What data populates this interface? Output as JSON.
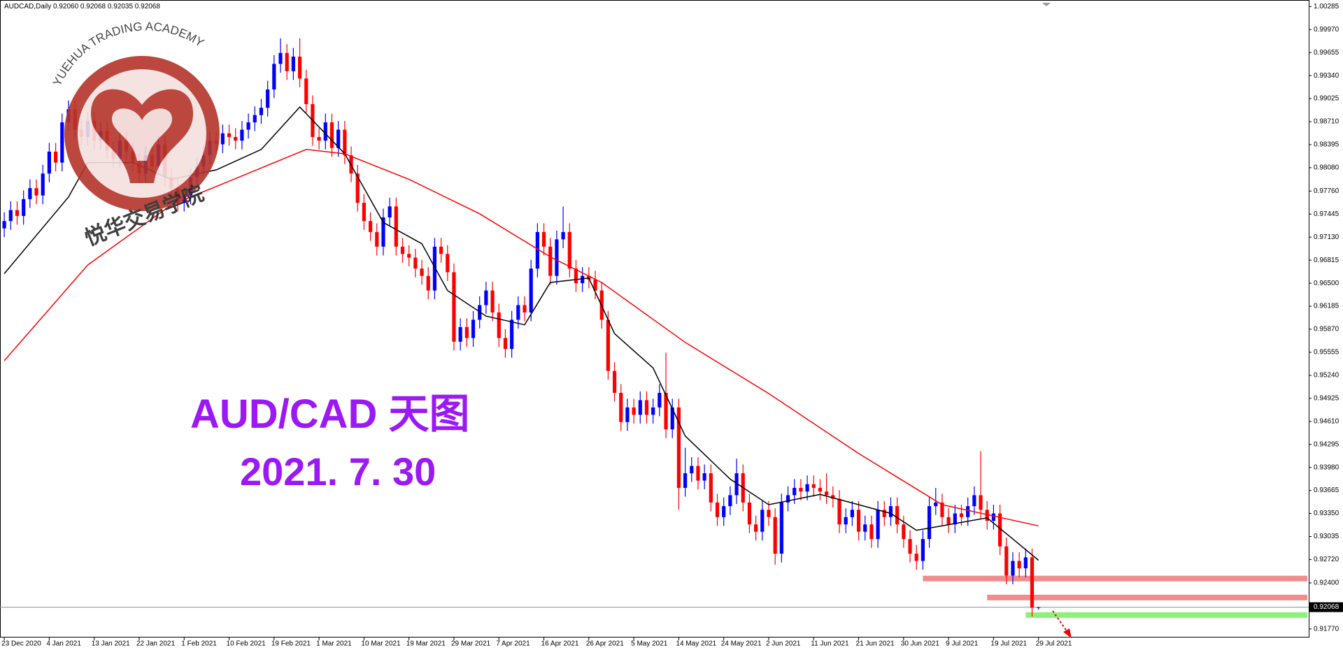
{
  "chart_data": {
    "type": "candlestick",
    "title": "AUDCAD,Daily 0.92060 0.92068 0.92035 0.92068",
    "annotations": [
      "AUD/CAD 天图",
      "2021. 7. 30"
    ],
    "logo": {
      "text_en": "YUEHUA TRADING ACADEMY",
      "text_cn": "悦华交易学院"
    },
    "up_color": "#0000ff",
    "down_color": "#ff0000",
    "ylim": [
      0.91653,
      1.00355
    ],
    "yticks": [
      1.00285,
      {
        "value": 0.9997,
        "label": "0.99970"
      },
      0.99655,
      {
        "value": 0.9934,
        "label": "0.99340"
      },
      0.99025,
      {
        "value": 0.9871,
        "label": "0.98710"
      },
      0.98395,
      {
        "value": 0.9808,
        "label": "0.98080"
      },
      {
        "value": 0.9776,
        "label": "0.97760"
      },
      0.97445,
      {
        "value": 0.9713,
        "label": "0.97130"
      },
      0.96815,
      {
        "value": 0.965,
        "label": "0.96500"
      },
      0.96185,
      {
        "value": 0.9587,
        "label": "0.95870"
      },
      0.95555,
      {
        "value": 0.9524,
        "label": "0.95240"
      },
      0.94925,
      {
        "value": 0.9461,
        "label": "0.94610"
      },
      0.94295,
      {
        "value": 0.9398,
        "label": "0.93980"
      },
      0.93665,
      {
        "value": 0.9335,
        "label": "0.93350"
      },
      0.93035,
      {
        "value": 0.9272,
        "label": "0.92720"
      },
      {
        "value": 0.924,
        "label": "0.92400"
      },
      {
        "value": 0.9177,
        "label": "0.91770"
      }
    ],
    "current_price": 0.92068,
    "categories": [
      "23 Dec 2020",
      null,
      null,
      null,
      null,
      null,
      null,
      "4 Jan 2021",
      null,
      null,
      null,
      null,
      null,
      null,
      "13 Jan 2021",
      null,
      null,
      null,
      null,
      null,
      null,
      "22 Jan 2021",
      null,
      null,
      null,
      null,
      null,
      null,
      "1 Feb 2021",
      null,
      null,
      null,
      null,
      null,
      null,
      "10 Feb 2021",
      null,
      null,
      null,
      null,
      null,
      null,
      "19 Feb 2021",
      null,
      null,
      null,
      null,
      null,
      null,
      "1 Mar 2021",
      null,
      null,
      null,
      null,
      null,
      null,
      "10 Mar 2021",
      null,
      null,
      null,
      null,
      null,
      null,
      "19 Mar 2021",
      null,
      null,
      null,
      null,
      null,
      null,
      "29 Mar 2021",
      null,
      null,
      null,
      null,
      null,
      null,
      "7 Apr 2021",
      null,
      null,
      null,
      null,
      null,
      null,
      "16 Apr 2021",
      null,
      null,
      null,
      null,
      null,
      null,
      "26 Apr 2021",
      null,
      null,
      null,
      null,
      null,
      null,
      "5 May 2021",
      null,
      null,
      null,
      null,
      null,
      null,
      "14 May 2021",
      null,
      null,
      null,
      null,
      null,
      null,
      "24 May 2021",
      null,
      null,
      null,
      null,
      null,
      null,
      "2 Jun 2021",
      null,
      null,
      null,
      null,
      null,
      null,
      "11 Jun 2021",
      null,
      null,
      null,
      null,
      null,
      null,
      "21 Jun 2021",
      null,
      null,
      null,
      null,
      null,
      null,
      "30 Jun 2021",
      null,
      null,
      null,
      null,
      null,
      null,
      "9 Jul 2021",
      null,
      null,
      null,
      null,
      null,
      null,
      "19 Jul 2021",
      null,
      null,
      null,
      null,
      null,
      null,
      "29 Jul 2021"
    ],
    "open": [
      0.9725,
      0.9735,
      0.975,
      0.9742,
      0.9765,
      0.978,
      0.977,
      0.98,
      0.983,
      0.9815,
      0.987,
      0.9888,
      0.986,
      0.985,
      0.9872,
      0.9845,
      0.9858,
      0.9832,
      0.982,
      0.9845,
      0.983,
      0.9815,
      0.98,
      0.9825,
      0.981,
      0.984,
      0.9795,
      0.978,
      0.976,
      0.977,
      0.9795,
      0.981,
      0.9825,
      0.9845,
      0.984,
      0.9855,
      0.985,
      0.9845,
      0.986,
      0.987,
      0.988,
      0.989,
      0.9915,
      0.995,
      0.9965,
      0.994,
      0.996,
      0.993,
      0.9895,
      0.985,
      0.9845,
      0.987,
      0.9835,
      0.986,
      0.9825,
      0.98,
      0.976,
      0.9735,
      0.972,
      0.97,
      0.974,
      0.9755,
      0.97,
      0.969,
      0.9685,
      0.967,
      0.966,
      0.964,
      0.97,
      0.969,
      0.9665,
      0.957,
      0.959,
      0.9575,
      0.96,
      0.962,
      0.964,
      0.961,
      0.9575,
      0.956,
      0.96,
      0.962,
      0.961,
      0.967,
      0.972,
      0.97,
      0.966,
      0.971,
      0.972,
      0.967,
      0.965,
      0.966,
      0.9655,
      0.964,
      0.96,
      0.953,
      0.95,
      0.946,
      0.948,
      0.947,
      0.949,
      0.947,
      0.948,
      0.95,
      0.945,
      0.948,
      0.937,
      0.939,
      0.94,
      0.938,
      0.939,
      0.935,
      0.933,
      0.9345,
      0.936,
      0.939,
      0.935,
      0.932,
      0.931,
      0.934,
      0.933,
      0.928,
      0.935,
      0.936,
      0.937,
      0.9365,
      0.9375,
      0.937,
      0.9365,
      0.936,
      0.9355,
      0.932,
      0.933,
      0.934,
      0.931,
      0.932,
      0.93,
      0.934,
      0.933,
      0.9345,
      0.932,
      0.93,
      0.928,
      0.927,
      0.93,
      0.9345,
      0.935,
      0.933,
      0.932,
      0.9335,
      0.933,
      0.9345,
      0.936,
      0.934,
      0.9325,
      0.9335,
      0.929,
      0.925,
      0.927,
      0.926,
      0.9275,
      0.9206
    ],
    "high": [
      0.9747,
      0.9762,
      0.9762,
      0.9777,
      0.9792,
      0.9792,
      0.9812,
      0.9842,
      0.9842,
      0.9882,
      0.99,
      0.99,
      0.9872,
      0.9884,
      0.9884,
      0.987,
      0.987,
      0.9844,
      0.9857,
      0.9857,
      0.9842,
      0.9827,
      0.9837,
      0.9837,
      0.9852,
      0.9852,
      0.9807,
      0.9792,
      0.9782,
      0.9807,
      0.9822,
      0.9837,
      0.9857,
      0.9857,
      0.9867,
      0.9867,
      0.9862,
      0.9872,
      0.9882,
      0.9892,
      0.9902,
      0.9927,
      0.9962,
      0.9985,
      0.9977,
      0.9972,
      0.9985,
      0.9942,
      0.9907,
      0.9862,
      0.9882,
      0.9882,
      0.9872,
      0.9872,
      0.9837,
      0.9812,
      0.9772,
      0.9747,
      0.9732,
      0.9752,
      0.9767,
      0.9767,
      0.9712,
      0.9702,
      0.9697,
      0.9682,
      0.9672,
      0.9712,
      0.9712,
      0.9702,
      0.9677,
      0.9602,
      0.9602,
      0.9612,
      0.9632,
      0.9652,
      0.9652,
      0.9622,
      0.9587,
      0.9612,
      0.9632,
      0.9632,
      0.9682,
      0.9732,
      0.9732,
      0.9712,
      0.9722,
      0.9755,
      0.9732,
      0.9682,
      0.9672,
      0.9672,
      0.9667,
      0.9652,
      0.9612,
      0.9542,
      0.9512,
      0.9492,
      0.9492,
      0.9502,
      0.9502,
      0.9492,
      0.9512,
      0.9555,
      0.9492,
      0.9492,
      0.9425,
      0.9412,
      0.9412,
      0.9402,
      0.9402,
      0.9362,
      0.9357,
      0.9372,
      0.941,
      0.9402,
      0.9362,
      0.9332,
      0.9352,
      0.9352,
      0.9342,
      0.9362,
      0.9372,
      0.9382,
      0.9382,
      0.9387,
      0.9387,
      0.9382,
      0.939,
      0.9372,
      0.9367,
      0.9342,
      0.9352,
      0.9352,
      0.9332,
      0.9332,
      0.9352,
      0.9352,
      0.9357,
      0.9357,
      0.9332,
      0.9312,
      0.9292,
      0.9312,
      0.9357,
      0.937,
      0.9362,
      0.9342,
      0.9347,
      0.9347,
      0.9357,
      0.9372,
      0.942,
      0.9352,
      0.9347,
      0.9347,
      0.9302,
      0.9282,
      0.9282,
      0.9287,
      0.9287,
      0.92068
    ],
    "low": [
      0.9713,
      0.9723,
      0.973,
      0.973,
      0.9753,
      0.9758,
      0.9758,
      0.9788,
      0.9803,
      0.9803,
      0.9858,
      0.9848,
      0.9838,
      0.9838,
      0.9833,
      0.9833,
      0.982,
      0.9808,
      0.9808,
      0.9818,
      0.9803,
      0.9788,
      0.9788,
      0.9798,
      0.9798,
      0.9783,
      0.9768,
      0.9748,
      0.9748,
      0.9758,
      0.9783,
      0.9798,
      0.9813,
      0.9828,
      0.9828,
      0.9838,
      0.9833,
      0.9833,
      0.9848,
      0.9858,
      0.9868,
      0.9878,
      0.9903,
      0.9938,
      0.9928,
      0.9928,
      0.9918,
      0.9883,
      0.9838,
      0.9833,
      0.9833,
      0.9823,
      0.9823,
      0.9813,
      0.9788,
      0.9748,
      0.9723,
      0.9708,
      0.9688,
      0.9688,
      0.9728,
      0.9688,
      0.9678,
      0.9673,
      0.9658,
      0.9648,
      0.9628,
      0.9628,
      0.9678,
      0.9653,
      0.9558,
      0.9558,
      0.9563,
      0.9563,
      0.9588,
      0.9608,
      0.9598,
      0.9563,
      0.9548,
      0.9548,
      0.9588,
      0.9598,
      0.9598,
      0.9658,
      0.9688,
      0.9648,
      0.9648,
      0.9698,
      0.9658,
      0.9638,
      0.9638,
      0.9643,
      0.9628,
      0.9588,
      0.9518,
      0.9488,
      0.9448,
      0.9448,
      0.9458,
      0.9458,
      0.9458,
      0.9458,
      0.9468,
      0.9438,
      0.9438,
      0.934,
      0.9358,
      0.9378,
      0.9368,
      0.9368,
      0.9338,
      0.9318,
      0.9318,
      0.9333,
      0.9348,
      0.9338,
      0.9308,
      0.9298,
      0.9298,
      0.9318,
      0.9265,
      0.9268,
      0.9338,
      0.9348,
      0.9353,
      0.9353,
      0.9358,
      0.9353,
      0.9348,
      0.9343,
      0.9308,
      0.9308,
      0.9318,
      0.9298,
      0.9298,
      0.9288,
      0.9288,
      0.9318,
      0.9318,
      0.9308,
      0.9288,
      0.9268,
      0.9258,
      0.9258,
      0.9288,
      0.9333,
      0.9318,
      0.9308,
      0.9308,
      0.9318,
      0.9318,
      0.9333,
      0.9328,
      0.9313,
      0.9313,
      0.9278,
      0.9238,
      0.9238,
      0.9248,
      0.9248,
      0.9194,
      0.92035
    ],
    "close": [
      0.9735,
      0.975,
      0.9742,
      0.9765,
      0.978,
      0.977,
      0.98,
      0.983,
      0.9815,
      0.987,
      0.9888,
      0.986,
      0.985,
      0.9872,
      0.9845,
      0.9858,
      0.9832,
      0.982,
      0.9845,
      0.983,
      0.9815,
      0.98,
      0.9825,
      0.981,
      0.984,
      0.9795,
      0.978,
      0.976,
      0.977,
      0.9795,
      0.981,
      0.9825,
      0.9845,
      0.984,
      0.9855,
      0.985,
      0.9845,
      0.986,
      0.987,
      0.988,
      0.989,
      0.9915,
      0.995,
      0.9965,
      0.994,
      0.996,
      0.993,
      0.9895,
      0.985,
      0.9845,
      0.987,
      0.9835,
      0.986,
      0.9825,
      0.98,
      0.976,
      0.9735,
      0.972,
      0.97,
      0.974,
      0.9755,
      0.97,
      0.969,
      0.9685,
      0.967,
      0.966,
      0.964,
      0.97,
      0.969,
      0.9665,
      0.957,
      0.959,
      0.9575,
      0.96,
      0.962,
      0.964,
      0.961,
      0.9575,
      0.956,
      0.96,
      0.962,
      0.961,
      0.967,
      0.972,
      0.97,
      0.966,
      0.971,
      0.972,
      0.967,
      0.965,
      0.966,
      0.9655,
      0.964,
      0.96,
      0.953,
      0.95,
      0.946,
      0.948,
      0.947,
      0.949,
      0.947,
      0.948,
      0.95,
      0.945,
      0.948,
      0.937,
      0.939,
      0.94,
      0.938,
      0.939,
      0.935,
      0.933,
      0.9345,
      0.936,
      0.939,
      0.935,
      0.932,
      0.931,
      0.934,
      0.933,
      0.928,
      0.935,
      0.936,
      0.937,
      0.9365,
      0.9375,
      0.937,
      0.9365,
      0.936,
      0.9355,
      0.932,
      0.933,
      0.934,
      0.931,
      0.932,
      0.93,
      0.934,
      0.933,
      0.9345,
      0.932,
      0.93,
      0.928,
      0.927,
      0.93,
      0.9345,
      0.935,
      0.933,
      0.932,
      0.9335,
      0.933,
      0.9345,
      0.936,
      0.934,
      0.9325,
      0.9335,
      0.929,
      0.925,
      0.927,
      0.926,
      0.9275,
      0.9206,
      0.92068
    ],
    "lines": [
      {
        "color": "#000000",
        "x": [
          0,
          10,
          13,
          20,
          26,
          33,
          40,
          46,
          53,
          59,
          65,
          69,
          75,
          81,
          85,
          91,
          95,
          101,
          106,
          113,
          119,
          127,
          133,
          138,
          142,
          146,
          153,
          157,
          161
        ],
        "values": [
          0.9663,
          0.9768,
          0.9815,
          0.9815,
          0.9792,
          0.9805,
          0.9833,
          0.9891,
          0.9827,
          0.9733,
          0.9704,
          0.964,
          0.9605,
          0.9593,
          0.9651,
          0.9657,
          0.9581,
          0.9534,
          0.9441,
          0.9382,
          0.9347,
          0.9361,
          0.9347,
          0.9335,
          0.9312,
          0.9318,
          0.9329,
          0.93,
          0.9271
        ]
      },
      {
        "color": "#ff0000",
        "x": [
          0,
          13,
          26,
          39,
          47,
          53,
          63,
          74,
          85,
          93,
          106,
          119,
          133,
          146,
          161
        ],
        "values": [
          0.9544,
          0.9675,
          0.9757,
          0.9804,
          0.9833,
          0.9827,
          0.9792,
          0.9745,
          0.9686,
          0.9651,
          0.9569,
          0.9499,
          0.9417,
          0.9347,
          0.9318
        ]
      }
    ],
    "levels": [
      {
        "value": 0.9246,
        "color": "#f28b8b",
        "x_from": 143
      },
      {
        "value": 0.922,
        "color": "#f28b8b",
        "x_from": 153
      },
      {
        "value": 0.9196,
        "color": "#8ef07a",
        "x_from": 159
      }
    ]
  }
}
